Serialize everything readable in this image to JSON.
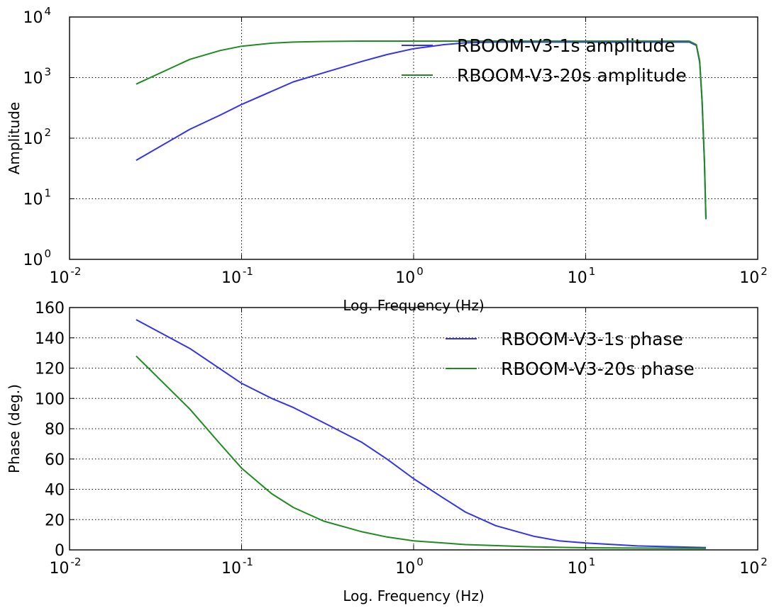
{
  "chart_data": [
    {
      "type": "line",
      "xlabel": "Log. Frequency (Hz)",
      "ylabel": "Amplitude",
      "xscale": "log",
      "yscale": "log",
      "xlim": [
        0.01,
        100
      ],
      "ylim": [
        1,
        10000
      ],
      "grid": true,
      "legend": "top-right",
      "x_ticks": [
        {
          "base": "10",
          "exp": "-2",
          "value": 0.01
        },
        {
          "base": "10",
          "exp": "-1",
          "value": 0.1
        },
        {
          "base": "10",
          "exp": "0",
          "value": 1
        },
        {
          "base": "10",
          "exp": "1",
          "value": 10
        },
        {
          "base": "10",
          "exp": "2",
          "value": 100
        }
      ],
      "y_ticks": [
        {
          "base": "10",
          "exp": "0",
          "value": 1
        },
        {
          "base": "10",
          "exp": "1",
          "value": 10
        },
        {
          "base": "10",
          "exp": "2",
          "value": 100
        },
        {
          "base": "10",
          "exp": "3",
          "value": 1000
        },
        {
          "base": "10",
          "exp": "4",
          "value": 10000
        }
      ],
      "series": [
        {
          "name": "RBOOM-V3-1s amplitude",
          "color": "#3333ee",
          "x": [
            0.0244,
            0.05,
            0.075,
            0.1,
            0.2,
            0.3,
            0.5,
            0.7,
            1.0,
            1.5,
            2.0,
            3.0,
            5.0,
            10,
            20,
            40,
            44,
            46,
            47.5,
            49,
            50
          ],
          "y": [
            43,
            140,
            240,
            360,
            850,
            1200,
            1850,
            2400,
            3000,
            3500,
            3750,
            3850,
            3850,
            3850,
            3850,
            3850,
            3400,
            1800,
            400,
            40,
            4.6
          ]
        },
        {
          "name": "RBOOM-V3-20s amplitude",
          "color": "#1e8c1e",
          "x": [
            0.0244,
            0.05,
            0.075,
            0.1,
            0.15,
            0.2,
            0.3,
            0.5,
            1.0,
            2.0,
            10,
            40,
            44,
            46,
            47.5,
            49,
            50
          ],
          "y": [
            780,
            2000,
            2800,
            3300,
            3700,
            3850,
            3950,
            4000,
            4000,
            4000,
            4000,
            4000,
            3500,
            1900,
            420,
            42,
            4.6
          ]
        }
      ]
    },
    {
      "type": "line",
      "xlabel": "Log. Frequency (Hz)",
      "ylabel": "Phase (deg.)",
      "xscale": "log",
      "yscale": "linear",
      "xlim": [
        0.01,
        100
      ],
      "ylim": [
        0,
        160
      ],
      "grid": true,
      "legend": "top-right",
      "x_ticks": [
        {
          "base": "10",
          "exp": "-2",
          "value": 0.01
        },
        {
          "base": "10",
          "exp": "-1",
          "value": 0.1
        },
        {
          "base": "10",
          "exp": "0",
          "value": 1
        },
        {
          "base": "10",
          "exp": "1",
          "value": 10
        },
        {
          "base": "10",
          "exp": "2",
          "value": 100
        }
      ],
      "y_ticks": [
        {
          "label": "0",
          "value": 0
        },
        {
          "label": "20",
          "value": 20
        },
        {
          "label": "40",
          "value": 40
        },
        {
          "label": "60",
          "value": 60
        },
        {
          "label": "80",
          "value": 80
        },
        {
          "label": "100",
          "value": 100
        },
        {
          "label": "120",
          "value": 120
        },
        {
          "label": "140",
          "value": 140
        },
        {
          "label": "160",
          "value": 160
        }
      ],
      "series": [
        {
          "name": "RBOOM-V3-1s phase",
          "color": "#3333ee",
          "x": [
            0.0244,
            0.05,
            0.1,
            0.15,
            0.2,
            0.3,
            0.5,
            0.7,
            1.0,
            1.5,
            2.0,
            3.0,
            5.0,
            7.0,
            10,
            20,
            50
          ],
          "y": [
            152,
            133,
            110,
            100,
            94,
            84,
            71,
            60,
            47,
            34,
            25,
            16,
            9,
            6,
            4.6,
            2.6,
            1.5
          ]
        },
        {
          "name": "RBOOM-V3-20s phase",
          "color": "#1e8c1e",
          "x": [
            0.0244,
            0.05,
            0.075,
            0.1,
            0.15,
            0.2,
            0.3,
            0.5,
            0.7,
            1.0,
            2.0,
            5.0,
            10,
            50
          ],
          "y": [
            128,
            93,
            70,
            54,
            37,
            28,
            19,
            12,
            8.5,
            6,
            3.5,
            2,
            1.4,
            1
          ]
        }
      ]
    }
  ]
}
